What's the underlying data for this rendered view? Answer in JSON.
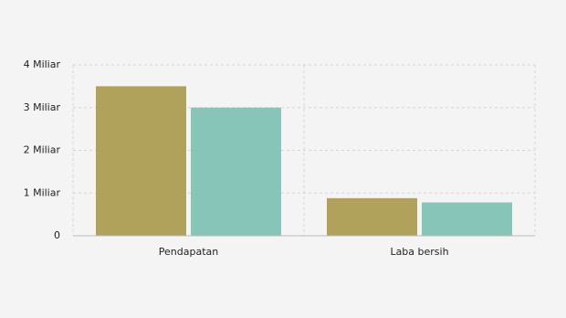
{
  "chart_data": {
    "type": "bar",
    "categories": [
      "Pendapatan",
      "Laba bersih"
    ],
    "series": [
      {
        "color": "#b0a25a",
        "values": [
          3.5,
          0.88
        ]
      },
      {
        "color": "#88c5b9",
        "values": [
          3.0,
          0.78
        ]
      }
    ],
    "ylim": [
      0,
      4
    ],
    "yticks": [
      0,
      {
        "value": 1,
        "label": "1 Miliar"
      },
      {
        "value": 2,
        "label": "2 Miliar"
      },
      {
        "value": 3,
        "label": "3 Miliar"
      },
      {
        "value": 4,
        "label": "4 Miliar"
      }
    ],
    "grid": true
  }
}
